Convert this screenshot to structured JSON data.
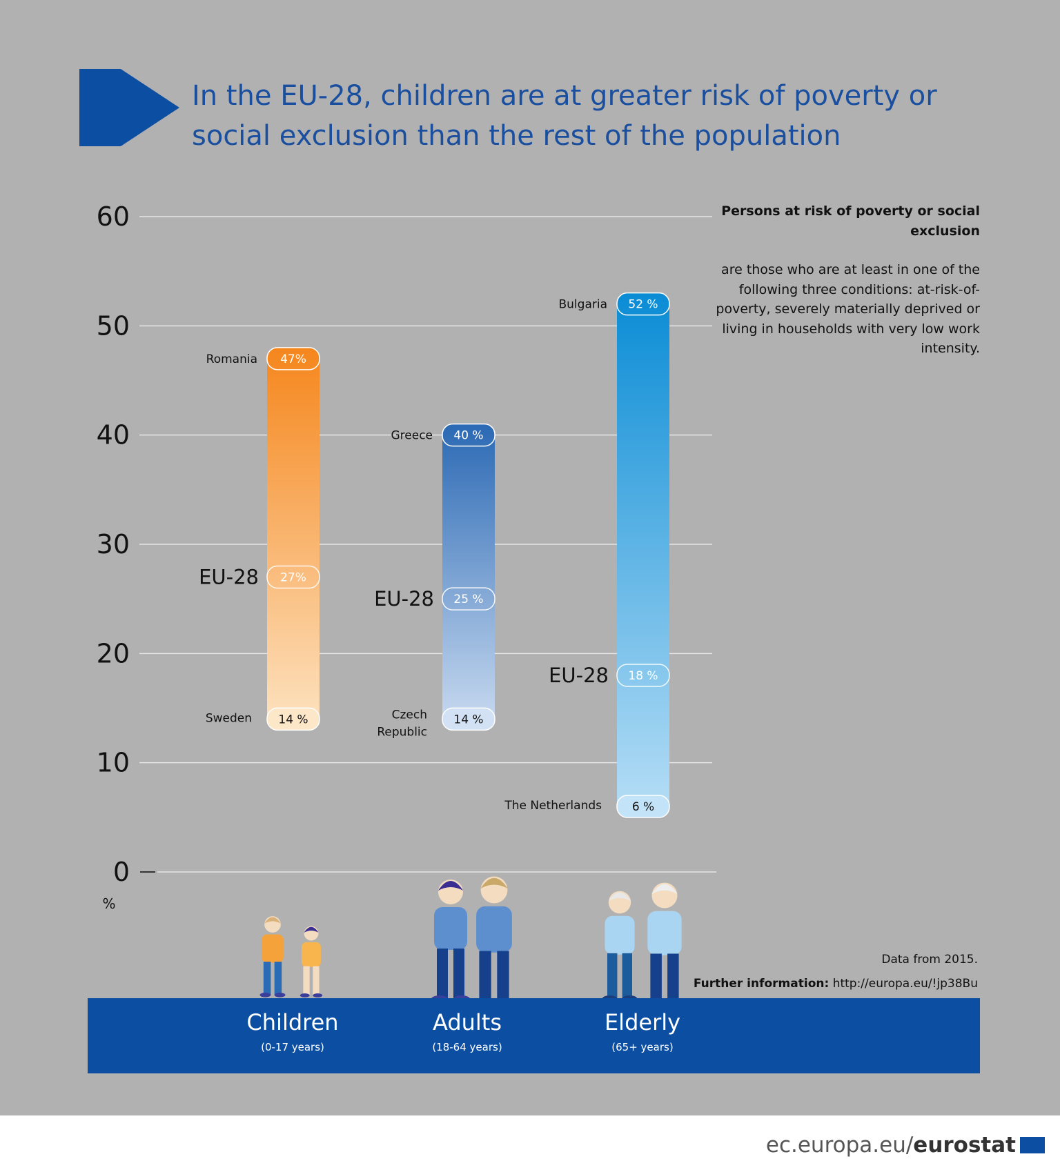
{
  "title": "In the EU-28, children are at greater risk of poverty or social exclusion than the rest of the population",
  "axis": {
    "unit": "%",
    "ticks": [
      "0",
      "10",
      "20",
      "30",
      "40",
      "50",
      "60"
    ]
  },
  "note": {
    "title": "Persons at risk of poverty or social exclusion",
    "body": "are those who are at least in one of the following three conditions: at-risk-of-poverty, severely materially deprived or living in households with very low work intensity."
  },
  "source": {
    "data_year": "Data from 2015.",
    "further_label": "Further information:",
    "further_url": "http://europa.eu/!jp38Bu"
  },
  "groups": [
    {
      "name": "Children",
      "age": "(0-17 years)"
    },
    {
      "name": "Adults",
      "age": "(18-64 years)"
    },
    {
      "name": "Elderly",
      "age": "(65+ years)"
    }
  ],
  "footer": {
    "site": "ec.europa.eu/",
    "brand": "eurostat"
  },
  "colors": {
    "title": "#1a4f9f",
    "band": "#0c4ea2",
    "background": "#b1b1b1",
    "children_bar": "#f58b1f",
    "adults_bar": "#2f6fb8",
    "elderly_bar": "#0e8fd6"
  },
  "chart_data": {
    "type": "range-bar",
    "ylabel": "%",
    "ylim": [
      0,
      60
    ],
    "grid": true,
    "categories": [
      "Children",
      "Adults",
      "Elderly"
    ],
    "series": [
      {
        "category": "Children",
        "max": {
          "country": "Romania",
          "value": 47,
          "label": "47%"
        },
        "eu": {
          "label": "EU-28",
          "value": 27,
          "text": "27%"
        },
        "min": {
          "country": "Sweden",
          "value": 14,
          "label": "14 %"
        }
      },
      {
        "category": "Adults",
        "max": {
          "country": "Greece",
          "value": 40,
          "label": "40 %"
        },
        "eu": {
          "label": "EU-28",
          "value": 25,
          "text": "25 %"
        },
        "min": {
          "country": "Czech Republic",
          "value": 14,
          "label": "14 %"
        }
      },
      {
        "category": "Elderly",
        "max": {
          "country": "Bulgaria",
          "value": 52,
          "label": "52 %"
        },
        "eu": {
          "label": "EU-28",
          "value": 18,
          "text": "18 %"
        },
        "min": {
          "country": "The Netherlands",
          "value": 6,
          "label": "6 %"
        }
      }
    ]
  }
}
